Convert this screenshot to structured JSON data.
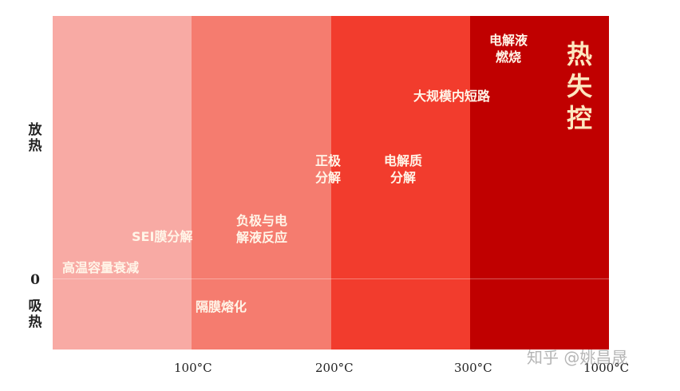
{
  "y_axis": {
    "top_label": [
      "放",
      "热"
    ],
    "zero": "0",
    "bottom_label": [
      "吸",
      "热"
    ]
  },
  "x_ticks": [
    "100°C",
    "200°C",
    "300°C",
    "1000°C"
  ],
  "zone_colors": [
    "#f8aaa4",
    "#f57c6f",
    "#f23c2d",
    "#c00000"
  ],
  "labels": {
    "capacity_fade": "高温容量衰减",
    "sei": "SEI膜分解",
    "separator": "隔膜熔化",
    "anode_electrolyte": [
      "负极与电",
      "解液反应"
    ],
    "cathode": [
      "正极",
      "分解"
    ],
    "electrolyte_decomp": [
      "电解质",
      "分解"
    ],
    "short_circuit": "大规模内短路",
    "electrolyte_burn": [
      "电解液",
      "燃烧"
    ],
    "thermal_runaway": [
      "热",
      "失",
      "控"
    ]
  },
  "watermark": "知乎 @姚昌晟"
}
